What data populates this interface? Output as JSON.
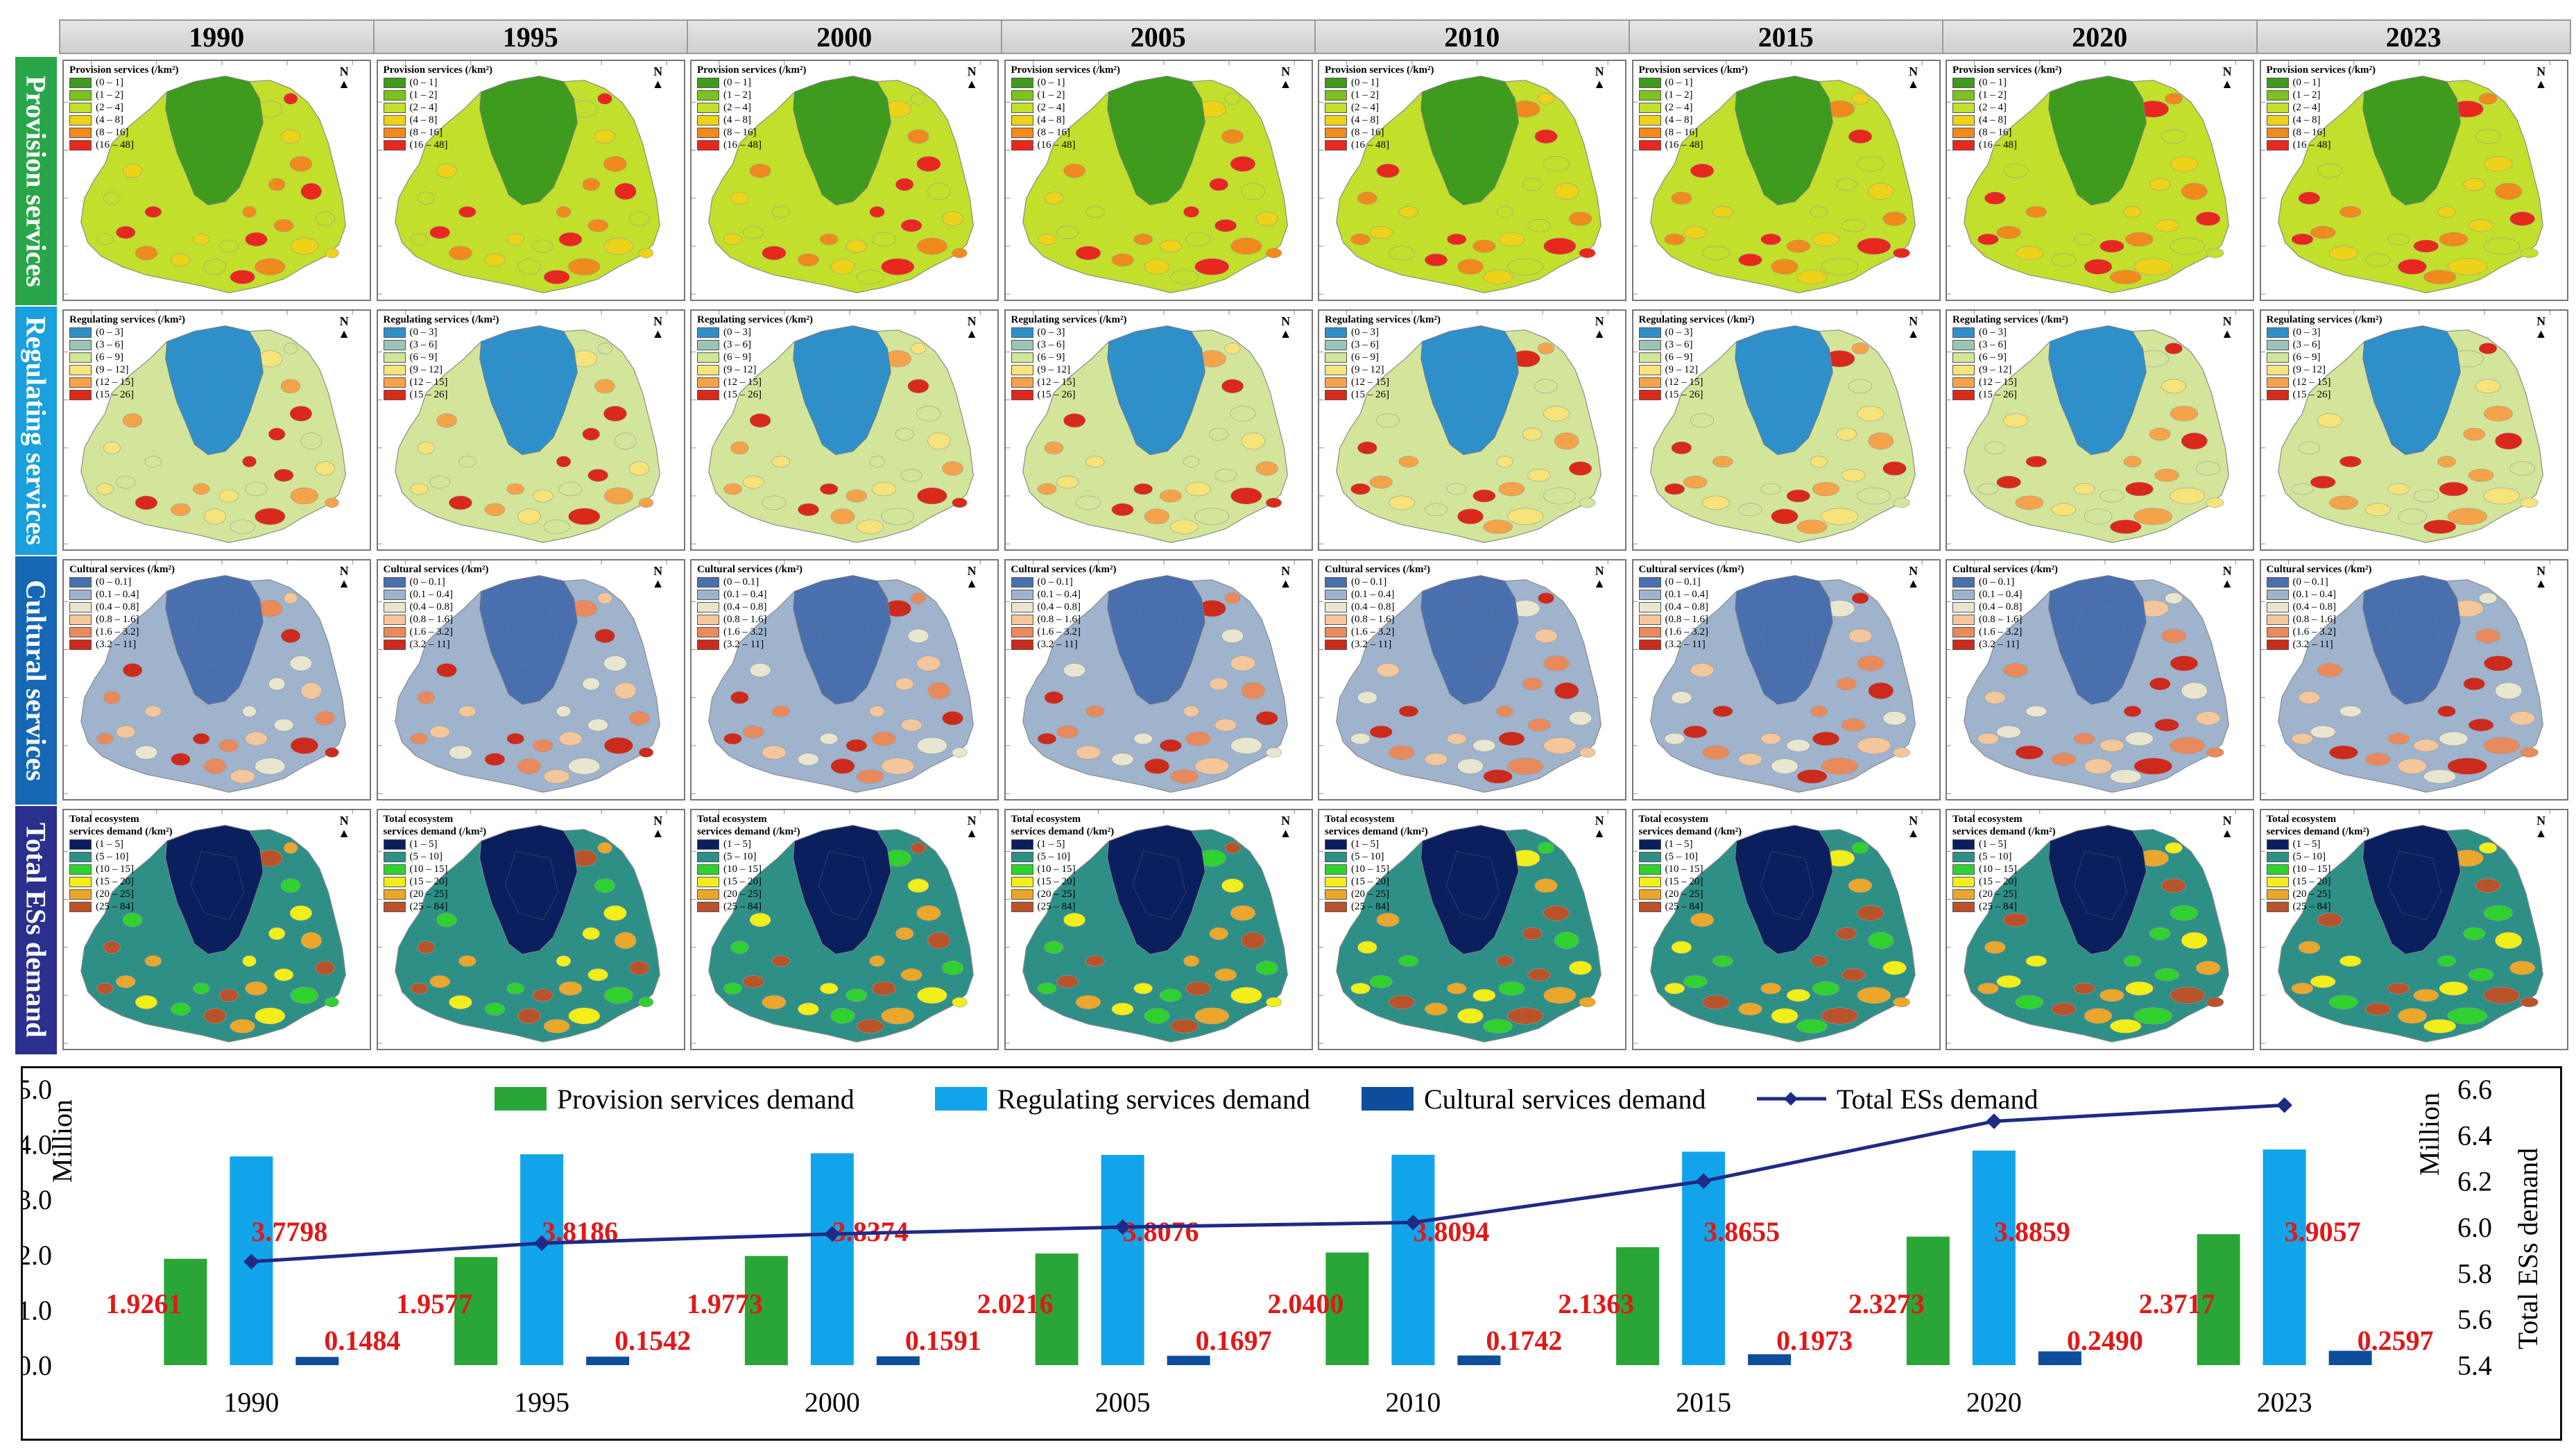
{
  "years": [
    "1990",
    "1995",
    "2000",
    "2005",
    "2010",
    "2015",
    "2020",
    "2023"
  ],
  "rows": [
    {
      "label": "Provision services",
      "label_color": "#2aa64a",
      "legend_title": "Provision services (/km²)",
      "legend_title_line2": "",
      "classes": [
        "(0 – 1]",
        "(1 – 2]",
        "(2 – 4]",
        "(4 – 8]",
        "(8 – 16]",
        "(16 – 48]"
      ],
      "colors": [
        "#3f9b1d",
        "#7dc21f",
        "#c2df2b",
        "#ecd219",
        "#f08a1c",
        "#e8281e"
      ],
      "base_color": "#c2df2b",
      "core_color": "#3f9b1d"
    },
    {
      "label": "Regulating services",
      "label_color": "#1aa0dc",
      "legend_title": "Regulating services (/km²)",
      "legend_title_line2": "",
      "classes": [
        "(0 – 3]",
        "(3 – 6]",
        "(6 – 9]",
        "(9 – 12]",
        "(12 – 15]",
        "(15 – 26]"
      ],
      "colors": [
        "#2f8fc9",
        "#9bc4b7",
        "#d3e59a",
        "#f6e47a",
        "#f5a34a",
        "#d9291b"
      ],
      "base_color": "#d3e59a",
      "core_color": "#2f8fc9"
    },
    {
      "label": "Cultural services",
      "label_color": "#1668b4",
      "legend_title": "Cultural services (/km²)",
      "legend_title_line2": "",
      "classes": [
        "(0 – 0.1]",
        "(0.1 – 0.4]",
        "(0.4 – 0.8]",
        "(0.8 – 1.6]",
        "(1.6 – 3.2]",
        "(3.2 – 11]"
      ],
      "colors": [
        "#4a6fae",
        "#9fb3cd",
        "#e8e6cf",
        "#f3c79b",
        "#e88a5b",
        "#cc2a1c"
      ],
      "base_color": "#9fb3cd",
      "core_color": "#4a6fae"
    },
    {
      "label": "Total ESs demand",
      "label_color": "#2b2f8e",
      "legend_title": "Total ecosystem",
      "legend_title_line2": "services demand (/km²)",
      "classes": [
        "(1 – 5]",
        "(5 – 10]",
        "(10 – 15]",
        "(15 – 20]",
        "(20 – 25]",
        "(25 – 84]"
      ],
      "colors": [
        "#0b1f5e",
        "#2e8f87",
        "#2fd12f",
        "#f2ee1a",
        "#eaa72b",
        "#b9532b"
      ],
      "base_color": "#2e8f87",
      "core_color": "#0b1f5e"
    }
  ],
  "north_label": "N",
  "chart_data": {
    "type": "bar",
    "categories": [
      "1990",
      "1995",
      "2000",
      "2005",
      "2010",
      "2015",
      "2020",
      "2023"
    ],
    "series": [
      {
        "name": "Provision services demand",
        "color": "#2aa639",
        "values": [
          1.9261,
          1.9577,
          1.9773,
          2.0216,
          2.04,
          2.1363,
          2.3273,
          2.3717
        ],
        "labels": [
          "1.9261",
          "1.9577",
          "1.9773",
          "2.0216",
          "2.0400",
          "2.1363",
          "2.3273",
          "2.3717"
        ]
      },
      {
        "name": "Regulating services demand",
        "color": "#12a4ea",
        "values": [
          3.7798,
          3.8186,
          3.8374,
          3.8076,
          3.8094,
          3.8655,
          3.8859,
          3.9057
        ],
        "labels": [
          "3.7798",
          "3.8186",
          "3.8374",
          "3.8076",
          "3.8094",
          "3.8655",
          "3.8859",
          "3.9057"
        ]
      },
      {
        "name": "Cultural services demand",
        "color": "#0e4d9c",
        "values": [
          0.1484,
          0.1542,
          0.1591,
          0.1697,
          0.1742,
          0.1973,
          0.249,
          0.2597
        ],
        "labels": [
          "0.1484",
          "0.1542",
          "0.1591",
          "0.1697",
          "0.1742",
          "0.1973",
          "0.2490",
          "0.2597"
        ]
      }
    ],
    "line": {
      "name": "Total ESs demand",
      "color": "#1f2a86",
      "values": [
        5.85,
        5.93,
        5.97,
        6.0,
        6.02,
        6.2,
        6.46,
        6.53
      ]
    },
    "left_axis": {
      "label": "Million",
      "ylim": [
        0,
        5
      ],
      "ticks": [
        "0.0",
        "1.0",
        "2.0",
        "3.0",
        "4.0",
        "5.0"
      ]
    },
    "right_axis": {
      "label": "Total ESs demand",
      "unit_label": "Million",
      "ylim": [
        5.4,
        6.6
      ],
      "ticks": [
        "5.4",
        "5.6",
        "5.8",
        "6.0",
        "6.2",
        "6.4",
        "6.6"
      ]
    },
    "label_color": "#e01818",
    "legend": "top"
  }
}
